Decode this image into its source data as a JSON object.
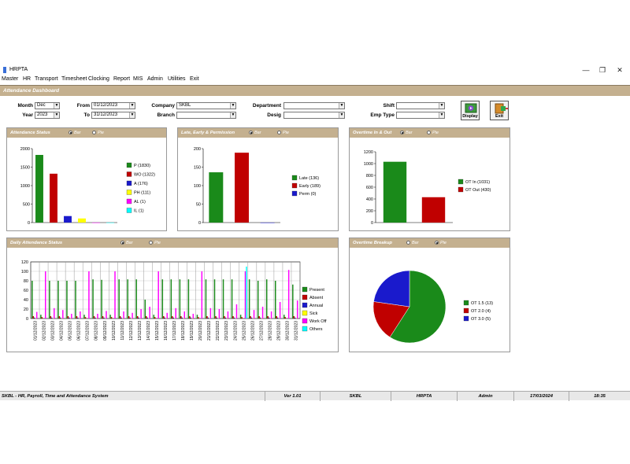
{
  "window": {
    "title": "HRPTA",
    "minimize": "—",
    "restore": "❐",
    "close": "✕"
  },
  "menu": [
    "Master",
    "HR",
    "Transport",
    "Timesheet",
    "Clocking",
    "Report",
    "MIS",
    "Admin",
    "Utilities",
    "Exit"
  ],
  "header": "Attendance Dashboard",
  "filters": {
    "month_label": "Month",
    "month": "Dec",
    "year_label": "Year",
    "year": "2023",
    "from_label": "From",
    "from": "01/12/2023",
    "to_label": "To",
    "to": "31/12/2023",
    "company_label": "Company",
    "company": "SKBL",
    "branch_label": "Branch",
    "branch": "",
    "department_label": "Department",
    "department": "",
    "desig_label": "Desig",
    "desig": "",
    "shift_label": "Shift",
    "shift": "",
    "emptype_label": "Emp Type",
    "emptype": ""
  },
  "buttons": {
    "display": "Display",
    "exit": "Exit"
  },
  "radio": {
    "bar": "Bar",
    "pie": "Pie"
  },
  "panels": {
    "attendance": {
      "title": "Attendance Status",
      "mode": "bar"
    },
    "late": {
      "title": "Late, Early & Permission",
      "mode": "bar"
    },
    "overtime": {
      "title": "Overtime In & Out",
      "mode": "bar"
    },
    "daily": {
      "title": "Daily Attendance Status",
      "mode": "bar"
    },
    "breakup": {
      "title": "Overtime Breakup",
      "mode": "pie"
    }
  },
  "chart_data": [
    {
      "type": "bar",
      "title": "Attendance Status",
      "ylim": [
        0,
        2000
      ],
      "yticks": [
        0,
        500,
        1000,
        1500,
        2000
      ],
      "categories": [
        "P",
        "WO",
        "A",
        "PH",
        "AL",
        "IL"
      ],
      "values": [
        1830,
        1322,
        176,
        111,
        1,
        1
      ],
      "legend": [
        "P (1830)",
        "WO (1322)",
        "A (176)",
        "PH (111)",
        "AL (1)",
        "IL (1)"
      ],
      "colors": [
        "#1a8a1a",
        "#c00000",
        "#1a1acc",
        "#ffff00",
        "#ff00ff",
        "#00ffff"
      ]
    },
    {
      "type": "bar",
      "title": "Late, Early & Permission",
      "ylim": [
        0,
        200
      ],
      "yticks": [
        0,
        50,
        100,
        150,
        200
      ],
      "categories": [
        "Late",
        "Early",
        "Perm"
      ],
      "values": [
        136,
        189,
        0
      ],
      "legend": [
        "Late (136)",
        "Early (189)",
        "Perm (0)"
      ],
      "colors": [
        "#1a8a1a",
        "#c00000",
        "#1a1acc"
      ]
    },
    {
      "type": "bar",
      "title": "Overtime In & Out",
      "ylim": [
        0,
        1200
      ],
      "yticks": [
        0,
        200,
        400,
        600,
        800,
        1000,
        1200
      ],
      "categories": [
        "OT In",
        "OT Out"
      ],
      "values": [
        1031,
        430
      ],
      "legend": [
        "OT In (1031)",
        "OT Out (430)"
      ],
      "colors": [
        "#1a8a1a",
        "#c00000"
      ]
    },
    {
      "type": "bar",
      "title": "Daily Attendance Status",
      "ylim": [
        0,
        120
      ],
      "yticks": [
        0,
        20,
        40,
        60,
        80,
        100,
        120
      ],
      "categories": [
        "01/12/2023",
        "02/12/2023",
        "03/12/2023",
        "04/12/2023",
        "05/12/2023",
        "06/12/2023",
        "07/12/2023",
        "08/12/2023",
        "09/12/2023",
        "10/12/2023",
        "11/12/2023",
        "12/12/2023",
        "13/12/2023",
        "14/12/2023",
        "15/12/2023",
        "16/12/2023",
        "17/12/2023",
        "18/12/2023",
        "19/12/2023",
        "20/12/2023",
        "21/12/2023",
        "22/12/2023",
        "23/12/2023",
        "24/12/2023",
        "25/12/2023",
        "26/12/2023",
        "27/12/2023",
        "28/12/2023",
        "29/12/2023",
        "30/12/2023",
        "31/12/2023"
      ],
      "series": [
        {
          "name": "Present",
          "color": "#1a8a1a",
          "values": [
            80,
            8,
            80,
            80,
            80,
            80,
            8,
            83,
            82,
            8,
            83,
            83,
            83,
            40,
            8,
            83,
            83,
            83,
            83,
            8,
            83,
            83,
            83,
            83,
            8,
            83,
            80,
            83,
            80,
            8,
            72
          ]
        },
        {
          "name": "Absent",
          "color": "#c00000",
          "values": [
            5,
            3,
            5,
            5,
            5,
            5,
            3,
            5,
            5,
            3,
            5,
            5,
            5,
            5,
            3,
            5,
            5,
            5,
            5,
            3,
            5,
            5,
            5,
            5,
            3,
            5,
            5,
            5,
            5,
            3,
            5
          ]
        },
        {
          "name": "Annual",
          "color": "#1a1acc",
          "values": [
            2,
            0,
            2,
            2,
            2,
            2,
            0,
            2,
            2,
            0,
            2,
            2,
            2,
            2,
            0,
            2,
            2,
            2,
            2,
            0,
            2,
            2,
            2,
            2,
            0,
            2,
            2,
            2,
            2,
            0,
            2
          ]
        },
        {
          "name": "Sick",
          "color": "#ffff00",
          "values": [
            1,
            0,
            1,
            1,
            1,
            1,
            0,
            1,
            1,
            0,
            1,
            1,
            1,
            1,
            0,
            1,
            1,
            1,
            1,
            0,
            1,
            1,
            1,
            1,
            0,
            1,
            1,
            1,
            1,
            0,
            1
          ]
        },
        {
          "name": "Work Off",
          "color": "#ff00ff",
          "values": [
            14,
            100,
            22,
            18,
            10,
            15,
            100,
            10,
            16,
            100,
            15,
            12,
            20,
            25,
            100,
            12,
            22,
            15,
            10,
            100,
            22,
            20,
            15,
            30,
            100,
            18,
            25,
            15,
            35,
            103,
            38
          ]
        },
        {
          "name": "Others",
          "color": "#00ffff",
          "values": [
            0,
            0,
            0,
            0,
            0,
            0,
            0,
            0,
            0,
            0,
            0,
            0,
            0,
            0,
            0,
            0,
            0,
            0,
            0,
            0,
            0,
            0,
            0,
            0,
            110,
            0,
            0,
            0,
            0,
            0,
            0
          ]
        }
      ]
    },
    {
      "type": "pie",
      "title": "Overtime Breakup",
      "categories": [
        "OT 1.5",
        "OT 2.0",
        "OT 3.0"
      ],
      "values": [
        13,
        4,
        5
      ],
      "legend": [
        "OT 1.5 (13)",
        "OT 2.0 (4)",
        "OT 3.0 (5)"
      ],
      "colors": [
        "#1a8a1a",
        "#c00000",
        "#1a1acc"
      ]
    }
  ],
  "status": {
    "app": "SKBL - HR, Payroll, Time and Attendance System",
    "version": "Ver 1.01",
    "company": "SKBL",
    "module": "HRPTA",
    "user": "Admin",
    "date": "17/03/2024",
    "time": "18:35"
  }
}
